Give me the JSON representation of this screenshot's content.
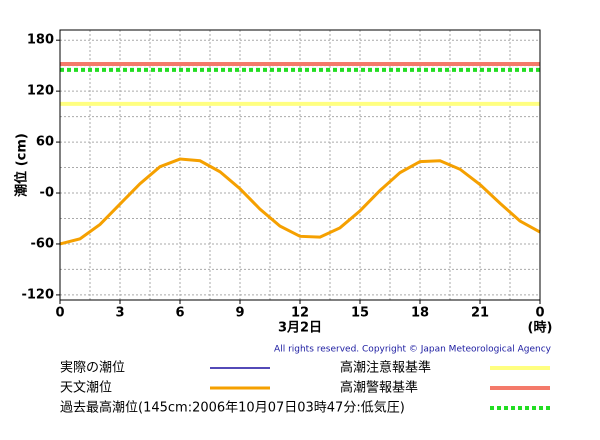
{
  "chart_data": {
    "type": "line",
    "y_label": "潮位 (cm)",
    "x_label": "3月2日",
    "x_unit": "(時)",
    "copyright": "All rights reserved. Copyright © Japan Meteorological Agency",
    "x": [
      0,
      1,
      2,
      3,
      4,
      5,
      6,
      7,
      8,
      9,
      10,
      11,
      12,
      13,
      14,
      15,
      16,
      17,
      18,
      19,
      20,
      21,
      22,
      23,
      24
    ],
    "series": [
      {
        "name": "実際の潮位",
        "color": "#1a0fa0",
        "values": [
          null,
          null,
          null,
          null,
          null,
          null,
          null,
          null,
          null,
          null,
          null,
          null,
          null,
          null,
          null,
          null,
          null,
          null,
          null,
          null,
          null,
          null,
          null,
          null,
          null
        ]
      },
      {
        "name": "天文潮位",
        "color": "#f5a000",
        "values": [
          -60,
          -54,
          -37,
          -13,
          11,
          31,
          40,
          38,
          25,
          5,
          -19,
          -39,
          -51,
          -52,
          -41,
          -21,
          3,
          24,
          37,
          38,
          28,
          10,
          -12,
          -33,
          -46
        ]
      }
    ],
    "reference_lines": [
      {
        "name": "高潮注意報基準",
        "color": "#ffff80",
        "value": 105,
        "style": "solid"
      },
      {
        "name": "高潮警報基準",
        "color": "#f47a6a",
        "value": 152,
        "style": "solid"
      },
      {
        "name": "過去最高潮位(145cm:2006年10月07日03時47分:低気圧)",
        "color": "#22dd22",
        "value": 145,
        "style": "dotted"
      }
    ],
    "xlim": [
      0,
      24
    ],
    "xticks": [
      0,
      3,
      6,
      9,
      12,
      15,
      18,
      21,
      {
        "value": 24,
        "label": "0"
      }
    ],
    "xgrid": [
      1.5,
      4.5,
      7.5,
      10.5,
      13.5,
      16.5,
      19.5,
      22.5
    ],
    "ylim": [
      -126,
      192
    ],
    "yticks": [
      -120,
      -60,
      {
        "value": 0,
        "label": "-0"
      },
      60,
      120,
      180
    ],
    "ygrid": [
      -90,
      -30,
      30,
      90,
      150
    ],
    "grid": true
  }
}
